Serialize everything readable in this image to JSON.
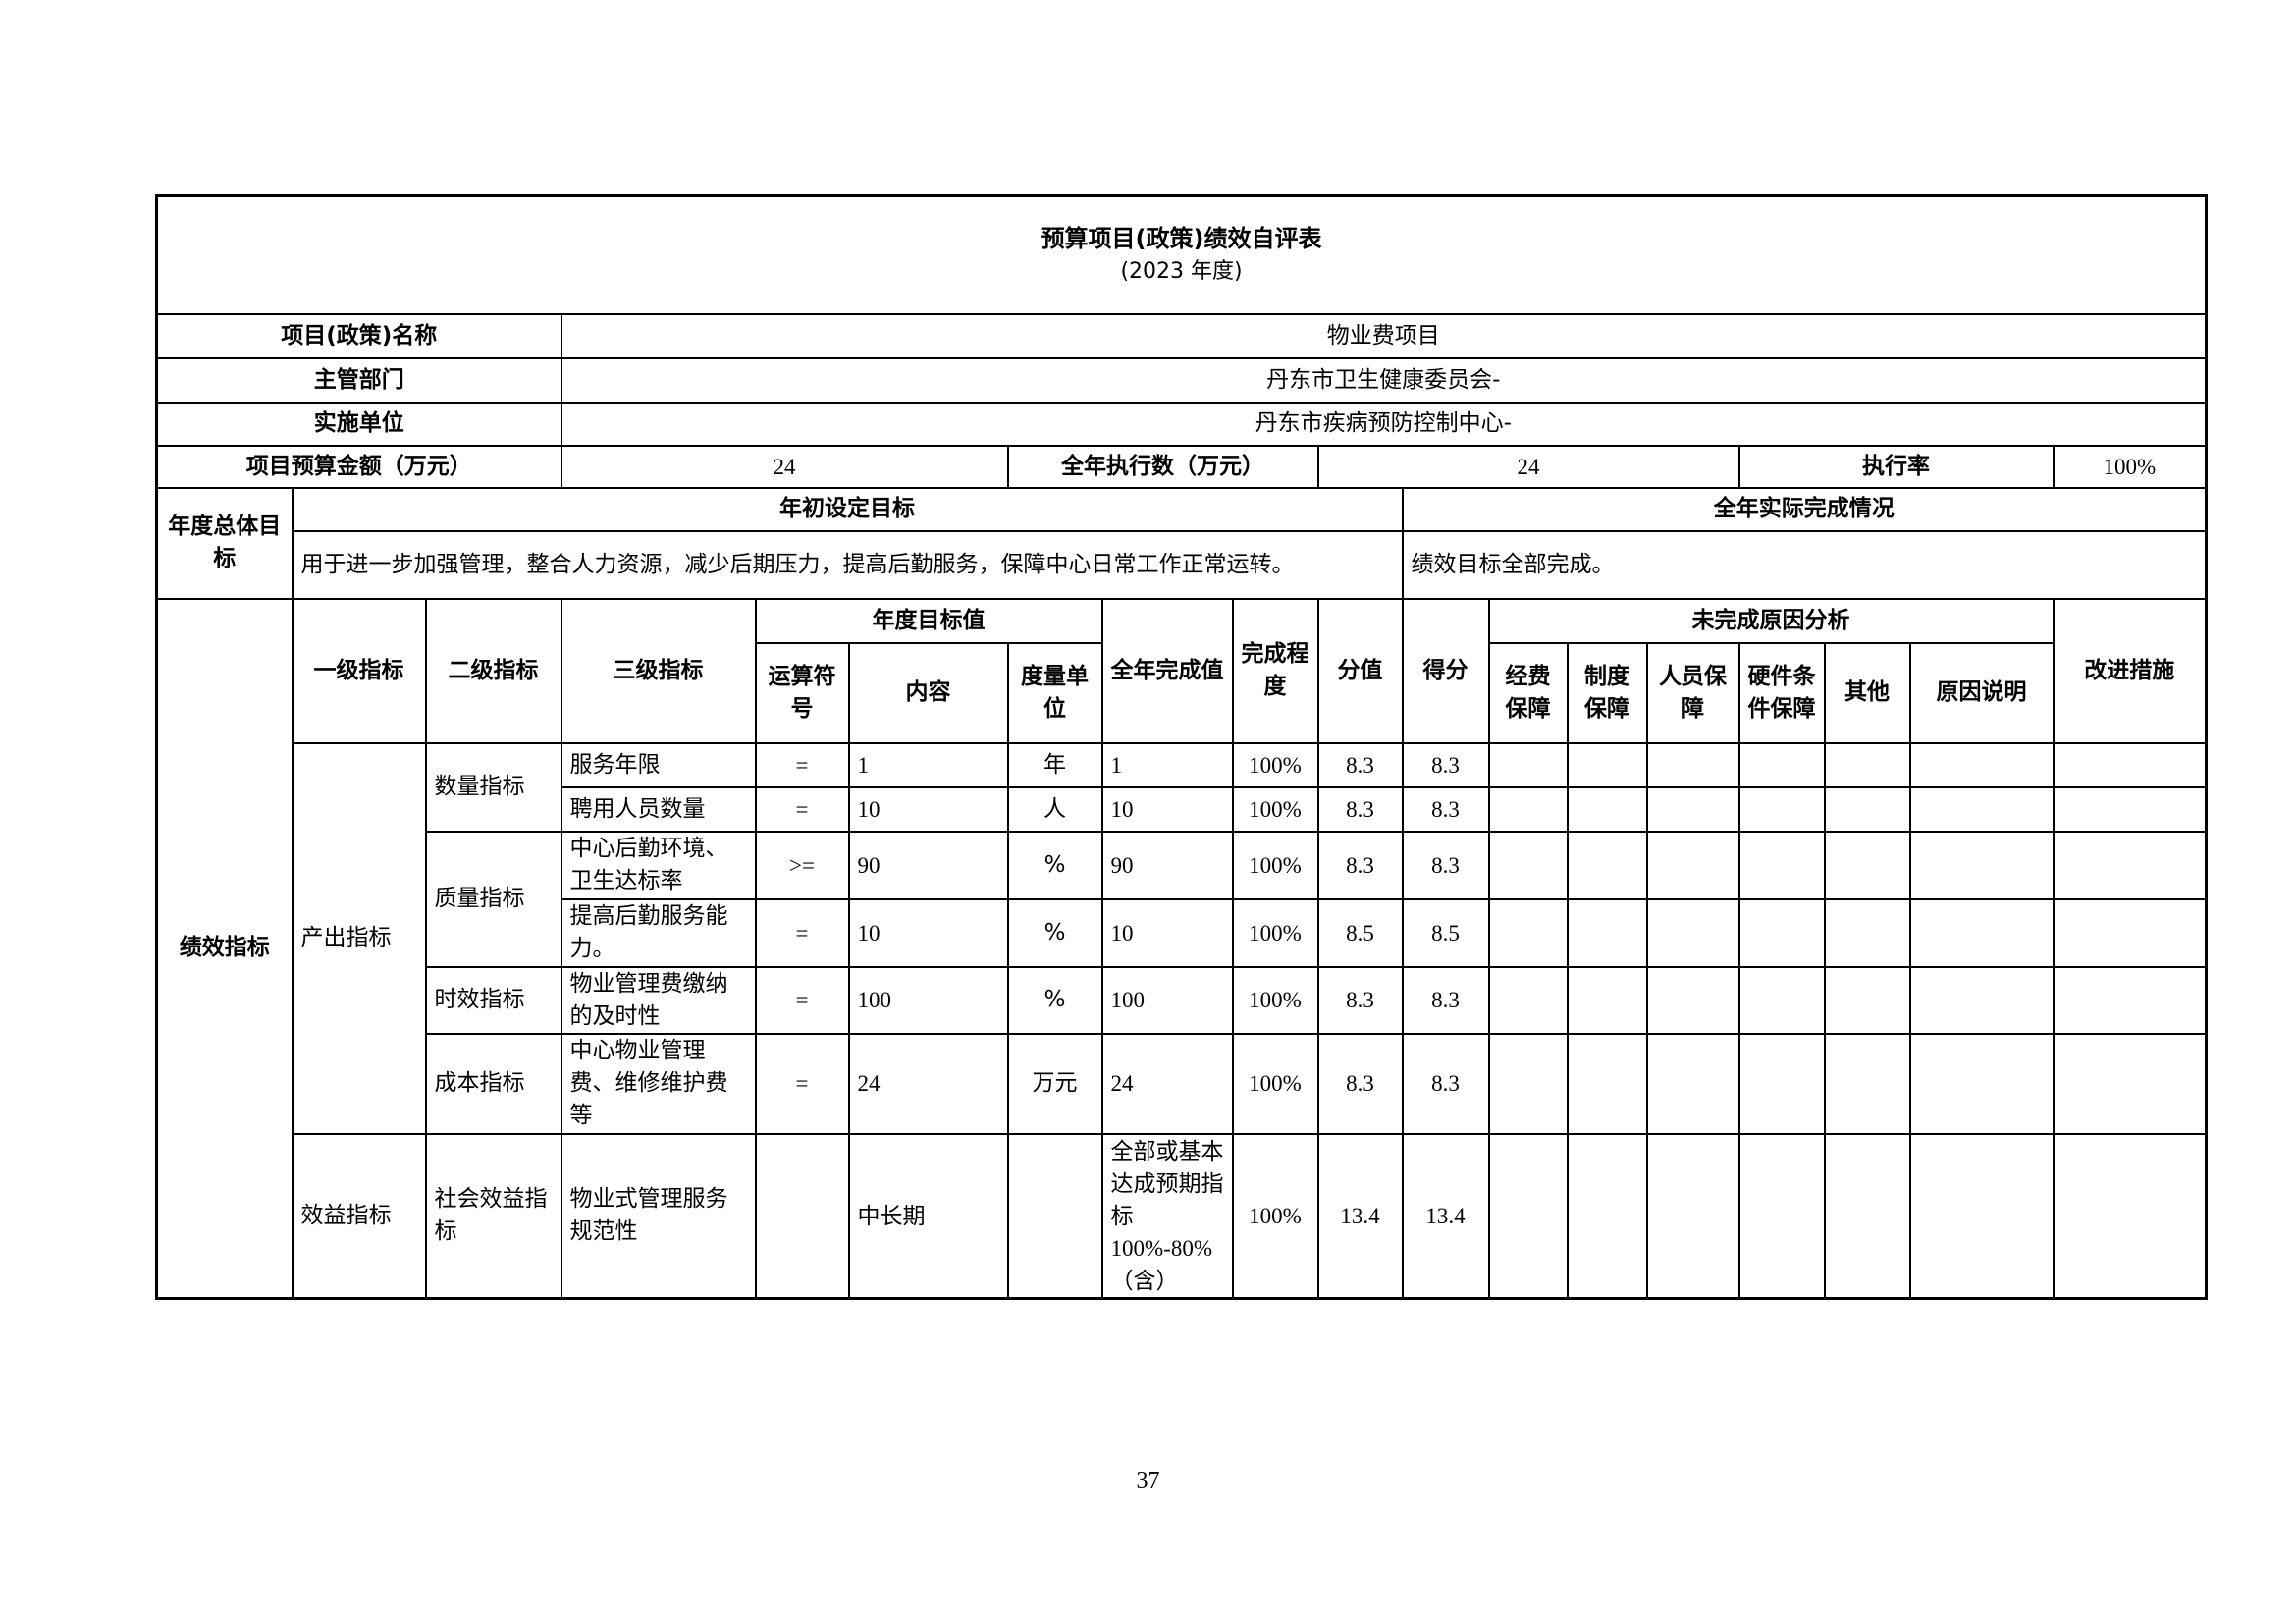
{
  "title": "预算项目(政策)绩效自评表",
  "subtitle": "(2023 年度)",
  "info": {
    "project_name_label": "项目(政策)名称",
    "project_name": "物业费项目",
    "dept_label": "主管部门",
    "dept": "丹东市卫生健康委员会-",
    "unit_label": "实施单位",
    "unit": "丹东市疾病预防控制中心-",
    "budget_label": "项目预算金额（万元）",
    "budget": "24",
    "executed_label": "全年执行数（万元）",
    "executed": "24",
    "rate_label": "执行率",
    "rate": "100%"
  },
  "goals": {
    "label": "年度总体目标",
    "target_header": "年初设定目标",
    "actual_header": "全年实际完成情况",
    "target_text": "用于进一步加强管理，整合人力资源，减少后期压力，提高后勤服务，保障中心日常工作正常运转。",
    "actual_text": "绩效目标全部完成。"
  },
  "indicators": {
    "label": "绩效指标",
    "headers": {
      "level1": "一级指标",
      "level2": "二级指标",
      "level3": "三级指标",
      "annual_target": "年度目标值",
      "operator": "运算符号",
      "content": "内容",
      "unit": "度量单位",
      "actual": "全年完成值",
      "completion": "完成程度",
      "weight": "分值",
      "score": "得分",
      "reason_analysis": "未完成原因分析",
      "funding": "经费保障",
      "system": "制度保障",
      "staff": "人员保障",
      "hardware": "硬件条件保障",
      "other": "其他",
      "reason_note": "原因说明",
      "improvement": "改进措施"
    },
    "groups": {
      "output": "产出指标",
      "quantity": "数量指标",
      "quality": "质量指标",
      "timeliness": "时效指标",
      "cost": "成本指标",
      "benefit": "效益指标",
      "social": "社会效益指标"
    },
    "rows": [
      {
        "name": "服务年限",
        "op": "=",
        "content": "1",
        "unit": "年",
        "actual": "1",
        "completion": "100%",
        "weight": "8.3",
        "score": "8.3"
      },
      {
        "name": "聘用人员数量",
        "op": "=",
        "content": "10",
        "unit": "人",
        "actual": "10",
        "completion": "100%",
        "weight": "8.3",
        "score": "8.3"
      },
      {
        "name": "中心后勤环境、卫生达标率",
        "op": ">=",
        "content": "90",
        "unit": "%",
        "actual": "90",
        "completion": "100%",
        "weight": "8.3",
        "score": "8.3"
      },
      {
        "name": "提高后勤服务能力。",
        "op": "=",
        "content": "10",
        "unit": "%",
        "actual": "10",
        "completion": "100%",
        "weight": "8.5",
        "score": "8.5"
      },
      {
        "name": "物业管理费缴纳的及时性",
        "op": "=",
        "content": "100",
        "unit": "%",
        "actual": "100",
        "completion": "100%",
        "weight": "8.3",
        "score": "8.3"
      },
      {
        "name": "中心物业管理费、维修维护费等",
        "op": "=",
        "content": "24",
        "unit": "万元",
        "actual": "24",
        "completion": "100%",
        "weight": "8.3",
        "score": "8.3"
      },
      {
        "name": "物业式管理服务规范性",
        "op": "",
        "content": "中长期",
        "unit": "",
        "actual": "全部或基本达成预期指标100%-80%（含）",
        "completion": "100%",
        "weight": "13.4",
        "score": "13.4"
      }
    ]
  },
  "page_number": "37"
}
